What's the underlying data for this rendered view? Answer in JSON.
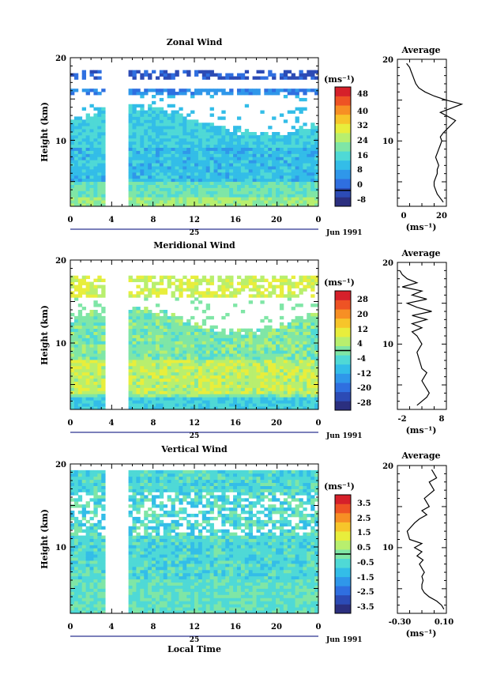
{
  "date_label": "Jun 1991",
  "date_day": "25",
  "xlabel": "Local Time",
  "unit_label": "(ms⁻¹)",
  "avg_title": "Average",
  "colorscale": [
    "#2b2f7f",
    "#2c4bb5",
    "#2f6fe0",
    "#2f97ea",
    "#33bde8",
    "#4fd9d6",
    "#7fe6a6",
    "#b8ef6e",
    "#e8ee3c",
    "#f7c52a",
    "#f78f24",
    "#ee5324",
    "#d6202a"
  ],
  "chart_data": [
    {
      "type": "heatmap",
      "title": "Zonal Wind",
      "ylabel": "Height (km)",
      "xlim": [
        0,
        24
      ],
      "ylim": [
        2,
        20
      ],
      "xticks": [
        "0",
        "4",
        "8",
        "12",
        "16",
        "20",
        "0"
      ],
      "yticks": [
        "10",
        "20"
      ],
      "data_gap": [
        3.4,
        5.6
      ],
      "colorbar": {
        "ticks": [
          "48",
          "40",
          "32",
          "24",
          "16",
          "8",
          "0",
          "-8"
        ],
        "min": -8,
        "max": 52
      },
      "average": {
        "xlim": [
          -8,
          24
        ],
        "xticks": [
          "0",
          "20"
        ],
        "profile_x": [
          22,
          20,
          18,
          17,
          16,
          16,
          17,
          18,
          18,
          19,
          18,
          17,
          18,
          19,
          20,
          21,
          20,
          22,
          30,
          20,
          34,
          24,
          16,
          10,
          6,
          4,
          3,
          2,
          1,
          0,
          -2
        ],
        "profile_y": [
          2.5,
          3,
          3.5,
          4,
          4.5,
          5,
          5.5,
          6,
          6.5,
          7,
          7.5,
          8,
          8.5,
          9,
          9.5,
          10,
          10.5,
          11,
          12.5,
          13.5,
          14.5,
          15,
          15.5,
          16,
          16.5,
          17,
          17.5,
          18,
          18.5,
          19,
          19.5
        ]
      }
    },
    {
      "type": "heatmap",
      "title": "Meridional Wind",
      "ylabel": "Height (km)",
      "xlim": [
        0,
        24
      ],
      "ylim": [
        2,
        20
      ],
      "xticks": [
        "0",
        "4",
        "8",
        "12",
        "16",
        "20",
        "0"
      ],
      "yticks": [
        "10",
        "20"
      ],
      "data_gap": [
        3.4,
        5.6
      ],
      "colorbar": {
        "ticks": [
          "28",
          "20",
          "12",
          "4",
          "-4",
          "-12",
          "-20",
          "-28"
        ],
        "min": -32,
        "max": 32
      },
      "average": {
        "xlim": [
          -2,
          8
        ],
        "xticks": [
          "-2",
          "8"
        ],
        "profile_x": [
          2,
          3,
          4,
          4.5,
          4,
          3.5,
          3,
          3.5,
          4,
          3,
          2.5,
          2,
          3,
          2,
          1,
          3,
          1,
          4,
          1,
          5,
          2,
          0,
          4,
          1,
          3,
          -1,
          2,
          0,
          -1,
          -1.5
        ],
        "profile_y": [
          2.5,
          3,
          3.5,
          4,
          4.5,
          5,
          5.5,
          6,
          6.5,
          7,
          8,
          9,
          10,
          11,
          11.5,
          12,
          12.5,
          13,
          13.5,
          14,
          14.5,
          15,
          15.5,
          16,
          16.5,
          17,
          17.5,
          18,
          18.5,
          19
        ]
      }
    },
    {
      "type": "heatmap",
      "title": "Vertical Wind",
      "ylabel": "Height (km)",
      "xlim": [
        0,
        24
      ],
      "ylim": [
        2,
        20
      ],
      "xticks": [
        "0",
        "4",
        "8",
        "12",
        "16",
        "20",
        "0"
      ],
      "yticks": [
        "10",
        "20"
      ],
      "data_gap": [
        3.4,
        5.6
      ],
      "colorbar": {
        "ticks": [
          "3.5",
          "2.5",
          "1.5",
          "0.5",
          "-0.5",
          "-1.5",
          "-2.5",
          "-3.5"
        ],
        "min": -4,
        "max": 4
      },
      "average": {
        "xlim": [
          -0.3,
          0.1
        ],
        "xticks": [
          "-0.30",
          "0.10"
        ],
        "profile_x": [
          0.08,
          0.06,
          0.02,
          -0.04,
          -0.08,
          -0.1,
          -0.1,
          -0.09,
          -0.1,
          -0.08,
          -0.1,
          -0.12,
          -0.09,
          -0.14,
          -0.1,
          -0.16,
          -0.1,
          -0.2,
          -0.22,
          -0.16,
          -0.12,
          -0.06,
          -0.1,
          -0.04,
          -0.08,
          0,
          -0.04,
          0.02,
          -0.02
        ],
        "profile_y": [
          2.5,
          3,
          3.5,
          4,
          4.5,
          5,
          5.5,
          6,
          6.5,
          7,
          7.5,
          8,
          8.5,
          9,
          9.5,
          10,
          10.5,
          11,
          12,
          13,
          13.5,
          14,
          14.5,
          15,
          16,
          17,
          18,
          18.5,
          19.5
        ]
      }
    }
  ]
}
